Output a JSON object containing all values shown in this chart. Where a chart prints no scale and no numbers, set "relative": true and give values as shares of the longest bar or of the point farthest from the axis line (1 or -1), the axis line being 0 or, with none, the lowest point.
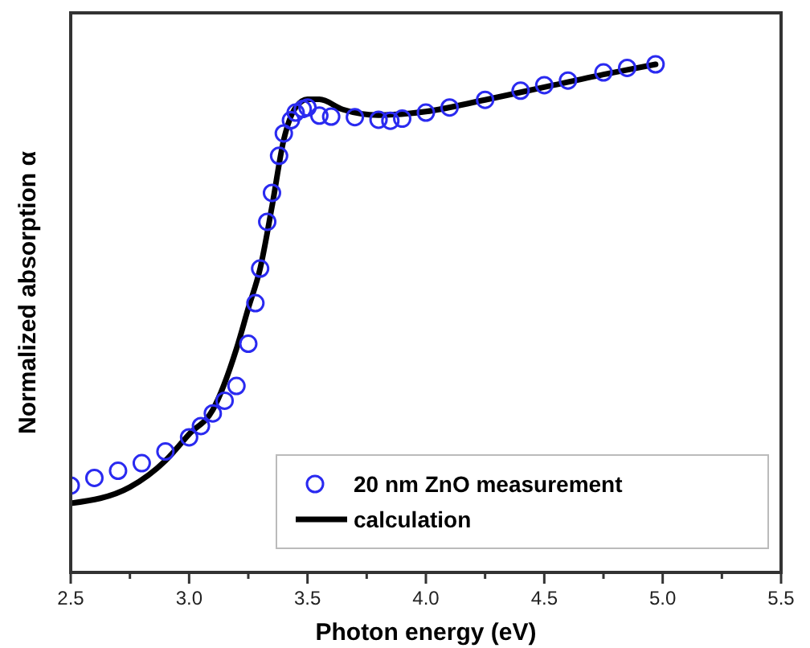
{
  "chart_data": {
    "type": "line",
    "relative": true,
    "xlabel": "Photon energy (eV)",
    "ylabel": "Normalized absorption α",
    "xlim": [
      2.5,
      5.5
    ],
    "xticks": [
      2.5,
      {
        "value": 2.75,
        "label": null
      },
      {
        "value": 3,
        "label": "3.0"
      },
      {
        "value": 3.25,
        "label": null
      },
      3.5,
      {
        "value": 3.75,
        "label": null
      },
      {
        "value": 4,
        "label": "4.0"
      },
      {
        "value": 4.25,
        "label": null
      },
      4.5,
      {
        "value": 4.75,
        "label": null
      },
      {
        "value": 5,
        "label": "5.0"
      },
      {
        "value": 5.25,
        "label": null
      },
      5.5
    ],
    "legend": "bottom right",
    "grid": false,
    "series": [
      {
        "name": "20 nm ZnO measurement",
        "type": "scatter",
        "marker": "circle",
        "color": "#2a2af0",
        "x": [
          2.5,
          2.6,
          2.7,
          2.8,
          2.9,
          3.0,
          3.05,
          3.1,
          3.15,
          3.2,
          3.25,
          3.28,
          3.3,
          3.33,
          3.35,
          3.38,
          3.4,
          3.43,
          3.45,
          3.48,
          3.5,
          3.55,
          3.6,
          3.7,
          3.8,
          3.85,
          3.9,
          4.0,
          4.1,
          4.25,
          4.4,
          4.5,
          4.6,
          4.75,
          4.85,
          4.97
        ],
        "values": [
          0.171,
          0.186,
          0.2,
          0.215,
          0.238,
          0.266,
          0.288,
          0.313,
          0.338,
          0.367,
          0.45,
          0.53,
          0.598,
          0.69,
          0.747,
          0.82,
          0.864,
          0.89,
          0.905,
          0.912,
          0.915,
          0.899,
          0.897,
          0.896,
          0.891,
          0.889,
          0.893,
          0.905,
          0.915,
          0.93,
          0.948,
          0.959,
          0.968,
          0.984,
          0.993,
          1.0
        ]
      },
      {
        "name": "calculation",
        "marker": "none",
        "line_style": "solid",
        "color": "#000000",
        "x": [
          2.5,
          2.75,
          2.9,
          3.0,
          3.1,
          3.2,
          3.25,
          3.3,
          3.35,
          3.4,
          3.45,
          3.5,
          3.55,
          3.65,
          3.8,
          4.0,
          4.25,
          4.5,
          4.75,
          4.97
        ],
        "values": [
          0.136,
          0.168,
          0.22,
          0.272,
          0.32,
          0.44,
          0.52,
          0.598,
          0.72,
          0.852,
          0.915,
          0.931,
          0.931,
          0.911,
          0.9,
          0.907,
          0.93,
          0.955,
          0.98,
          1.0
        ]
      }
    ]
  }
}
